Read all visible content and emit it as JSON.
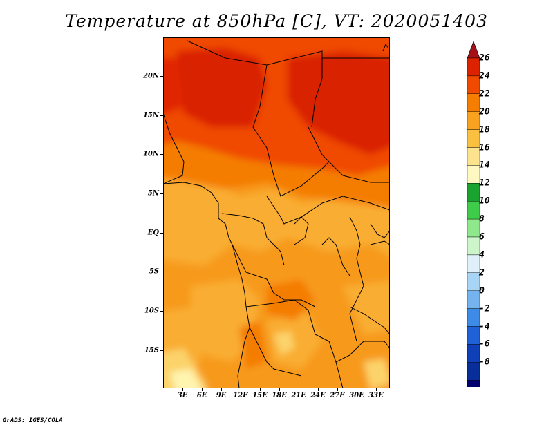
{
  "title": "Temperature at 850hPa [C], VT: 2020051403",
  "credit": "GrADS: IGES/COLA",
  "map": {
    "variable": "Temperature at 850hPa",
    "units": "C",
    "valid_time": "2020051403",
    "lat_labels": [
      "20N",
      "15N",
      "10N",
      "5N",
      "EQ",
      "5S",
      "10S",
      "15S"
    ],
    "lon_labels": [
      "3E",
      "6E",
      "9E",
      "12E",
      "15E",
      "18E",
      "21E",
      "24E",
      "27E",
      "30E",
      "33E"
    ]
  },
  "colorbar": {
    "levels": [
      "26",
      "24",
      "22",
      "20",
      "18",
      "16",
      "14",
      "12",
      "10",
      "8",
      "6",
      "4",
      "2",
      "0",
      "-2",
      "-4",
      "-6",
      "-8"
    ],
    "colors": [
      "#a50f15",
      "#dd2200",
      "#f04a00",
      "#f57d00",
      "#f9a21f",
      "#fac040",
      "#fde38d",
      "#fff8c0",
      "#1aa32f",
      "#3fcc4a",
      "#8fe88c",
      "#ccf5c9",
      "#dff0fb",
      "#a8d4f5",
      "#74b3ee",
      "#3d8be6",
      "#1f62d8",
      "#1040b8",
      "#082e9a",
      "#00006e",
      "#e8e8ff"
    ]
  }
}
